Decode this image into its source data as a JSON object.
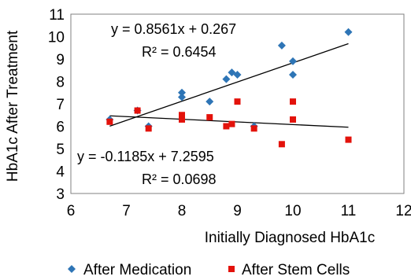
{
  "chart_data": {
    "type": "scatter",
    "xlabel": "Initially Diagnosed HbA1c",
    "ylabel": "HbA1c After Treatment",
    "xlim": [
      6,
      12
    ],
    "ylim": [
      3,
      11
    ],
    "xticks": [
      "6",
      "7",
      "8",
      "9",
      "10",
      "11",
      "12"
    ],
    "yticks": [
      "3",
      "4",
      "5",
      "6",
      "7",
      "8",
      "9",
      "10",
      "11"
    ],
    "grid": false,
    "legend_position": "bottom",
    "series": [
      {
        "name": "After Medication",
        "marker": "diamond",
        "color": "#2e75b6",
        "x": [
          6.7,
          7.2,
          7.4,
          8.0,
          8.0,
          8.5,
          8.8,
          8.9,
          9.0,
          9.3,
          9.8,
          10.0,
          10.0,
          11.0
        ],
        "y": [
          6.3,
          6.7,
          6.0,
          7.5,
          7.3,
          7.1,
          8.1,
          8.4,
          8.3,
          6.0,
          9.6,
          8.9,
          8.3,
          10.2
        ]
      },
      {
        "name": "After Stem Cells",
        "marker": "square",
        "color": "#e3120b",
        "x": [
          6.7,
          7.2,
          7.4,
          8.0,
          8.0,
          8.5,
          8.8,
          8.9,
          9.0,
          9.3,
          9.8,
          10.0,
          10.0,
          11.0
        ],
        "y": [
          6.2,
          6.7,
          5.9,
          6.5,
          6.3,
          6.4,
          6.0,
          6.1,
          7.1,
          5.9,
          5.2,
          7.1,
          6.3,
          5.4
        ]
      }
    ],
    "trendlines": [
      {
        "series": "After Medication",
        "slope": 0.8561,
        "intercept": 0.267,
        "x_range": [
          6.7,
          11.0
        ],
        "equation": "y = 0.8561x + 0.267",
        "r2": "R² = 0.6454"
      },
      {
        "series": "After Stem Cells",
        "slope": -0.1185,
        "intercept": 7.2595,
        "x_range": [
          6.7,
          11.0
        ],
        "equation": "y = -0.1185x + 7.2595",
        "r2": "R² = 0.0698"
      }
    ]
  }
}
